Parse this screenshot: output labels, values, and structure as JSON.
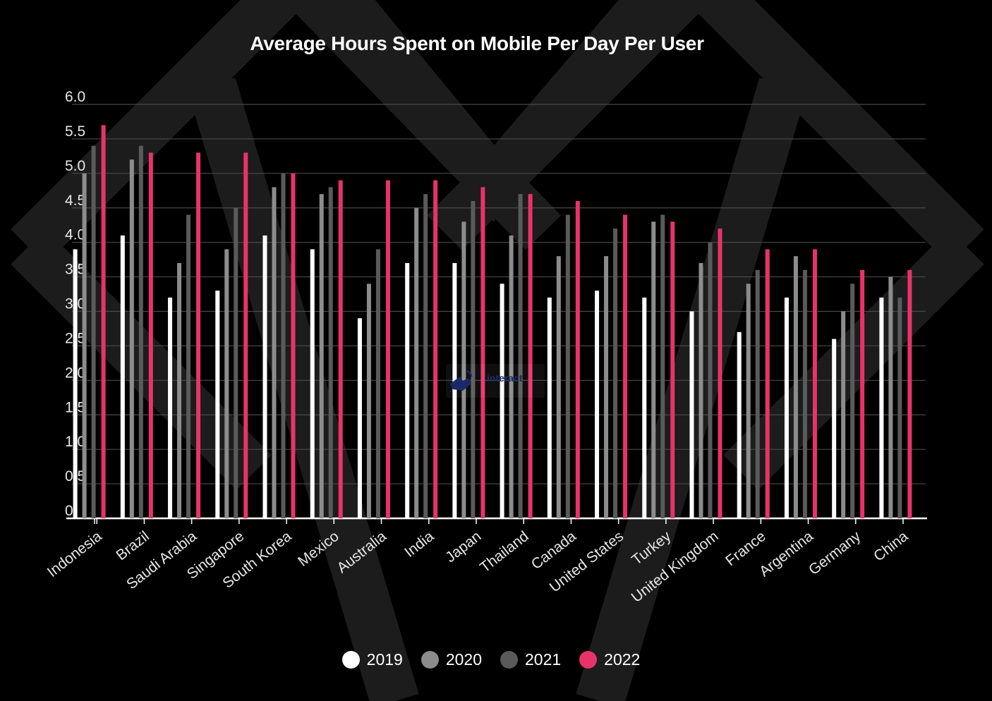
{
  "colors": {
    "background": "#000000",
    "grid": "#4a4a4a",
    "axis": "#ffffff",
    "decoration": "#1c1c1c"
  },
  "watermark": {
    "text": "interact",
    "icon": "cursor-hand-icon"
  },
  "chart_data": {
    "type": "bar",
    "title": "Average Hours Spent on Mobile Per Day Per User",
    "xlabel": "",
    "ylabel": "",
    "ylim": [
      0,
      6.0
    ],
    "yticks": [
      "0",
      "0.5",
      "1.0",
      "1.5",
      "2.0",
      "2.5",
      "3.0",
      "3.5",
      "4.0",
      "4.5",
      "5.0",
      "5.5",
      "6.0"
    ],
    "grid": true,
    "legend_position": "bottom-center",
    "categories": [
      "Indonesia",
      "Brazil",
      "Saudi Arabia",
      "Singapore",
      "South Korea",
      "Mexico",
      "Australia",
      "India",
      "Japan",
      "Thailand",
      "Canada",
      "United States",
      "Turkey",
      "United Kingdom",
      "France",
      "Argentina",
      "Germany",
      "China"
    ],
    "series": [
      {
        "name": "2019",
        "color": "#ffffff",
        "values": [
          3.9,
          4.1,
          3.2,
          3.3,
          4.1,
          3.9,
          2.9,
          3.7,
          3.7,
          3.4,
          3.2,
          3.3,
          3.2,
          3.0,
          2.7,
          3.2,
          2.6,
          3.2
        ]
      },
      {
        "name": "2020",
        "color": "#8c8c8c",
        "values": [
          5.0,
          5.2,
          3.7,
          3.9,
          4.8,
          4.7,
          3.4,
          4.5,
          4.3,
          4.1,
          3.8,
          3.8,
          4.3,
          3.7,
          3.4,
          3.8,
          3.0,
          3.5
        ]
      },
      {
        "name": "2021",
        "color": "#5a5a5a",
        "values": [
          5.4,
          5.4,
          4.4,
          4.5,
          5.0,
          4.8,
          3.9,
          4.7,
          4.6,
          4.7,
          4.4,
          4.2,
          4.4,
          4.0,
          3.6,
          3.6,
          3.4,
          3.2
        ]
      },
      {
        "name": "2022",
        "color": "#e8336a",
        "values": [
          5.7,
          5.3,
          5.3,
          5.3,
          5.0,
          4.9,
          4.9,
          4.9,
          4.8,
          4.7,
          4.6,
          4.4,
          4.3,
          4.2,
          3.9,
          3.9,
          3.6,
          3.6
        ]
      }
    ]
  }
}
